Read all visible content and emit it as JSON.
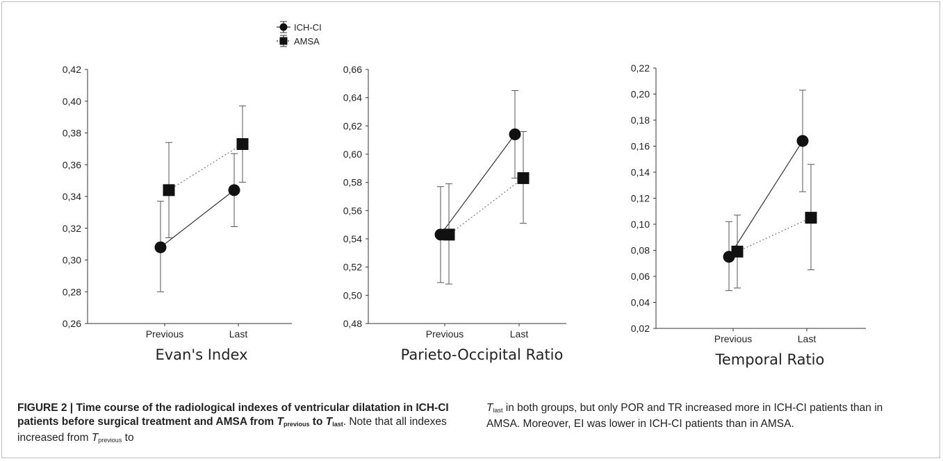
{
  "legend": {
    "items": [
      {
        "name": "ICH-CI",
        "marker": "circle",
        "line": "solid"
      },
      {
        "name": "AMSA",
        "marker": "square",
        "line": "dotted"
      }
    ]
  },
  "chart_data": [
    {
      "type": "line",
      "title": "Evan's Index",
      "categories": [
        "Previous",
        "Last"
      ],
      "ylim": [
        0.26,
        0.42
      ],
      "yticks": [
        "0,26",
        "0,28",
        "0,30",
        "0,32",
        "0,34",
        "0,36",
        "0,38",
        "0,40",
        "0,42"
      ],
      "series": [
        {
          "name": "ICH-CI",
          "values": [
            0.308,
            0.344
          ],
          "err_low": [
            0.28,
            0.321
          ],
          "err_high": [
            0.337,
            0.367
          ]
        },
        {
          "name": "AMSA",
          "values": [
            0.344,
            0.373
          ],
          "err_low": [
            0.314,
            0.349
          ],
          "err_high": [
            0.374,
            0.397
          ]
        }
      ]
    },
    {
      "type": "line",
      "title": "Parieto-Occipital Ratio",
      "categories": [
        "Previous",
        "Last"
      ],
      "ylim": [
        0.48,
        0.66
      ],
      "yticks": [
        "0,48",
        "0,50",
        "0,52",
        "0,54",
        "0,56",
        "0,58",
        "0,60",
        "0,62",
        "0,64",
        "0,66"
      ],
      "series": [
        {
          "name": "ICH-CI",
          "values": [
            0.543,
            0.614
          ],
          "err_low": [
            0.509,
            0.583
          ],
          "err_high": [
            0.577,
            0.645
          ]
        },
        {
          "name": "AMSA",
          "values": [
            0.543,
            0.583
          ],
          "err_low": [
            0.508,
            0.551
          ],
          "err_high": [
            0.579,
            0.616
          ]
        }
      ]
    },
    {
      "type": "line",
      "title": "Temporal Ratio",
      "categories": [
        "Previous",
        "Last"
      ],
      "ylim": [
        0.02,
        0.22
      ],
      "yticks": [
        "0,02",
        "0,04",
        "0,06",
        "0,08",
        "0,10",
        "0,12",
        "0,14",
        "0,16",
        "0,18",
        "0,20",
        "0,22"
      ],
      "series": [
        {
          "name": "ICH-CI",
          "values": [
            0.075,
            0.164
          ],
          "err_low": [
            0.049,
            0.125
          ],
          "err_high": [
            0.102,
            0.203
          ]
        },
        {
          "name": "AMSA",
          "values": [
            0.079,
            0.105
          ],
          "err_low": [
            0.051,
            0.065
          ],
          "err_high": [
            0.107,
            0.146
          ]
        }
      ]
    }
  ],
  "caption": {
    "label": "FIGURE 2 | ",
    "bold_main": "Time course of the radiological indexes of ventricular dilatation in ICH-CI patients before surgical treatment and AMSA from ",
    "t": "T",
    "sub_previous": "previous",
    "to": " to ",
    "sub_last": "last",
    "text1": ". Note that all indexes increased from ",
    "text2": " to ",
    "text3": " in both groups, but only POR and TR increased more in ICH-CI patients than in AMSA. Moreover, EI was lower in ICH-CI patients than in AMSA."
  }
}
